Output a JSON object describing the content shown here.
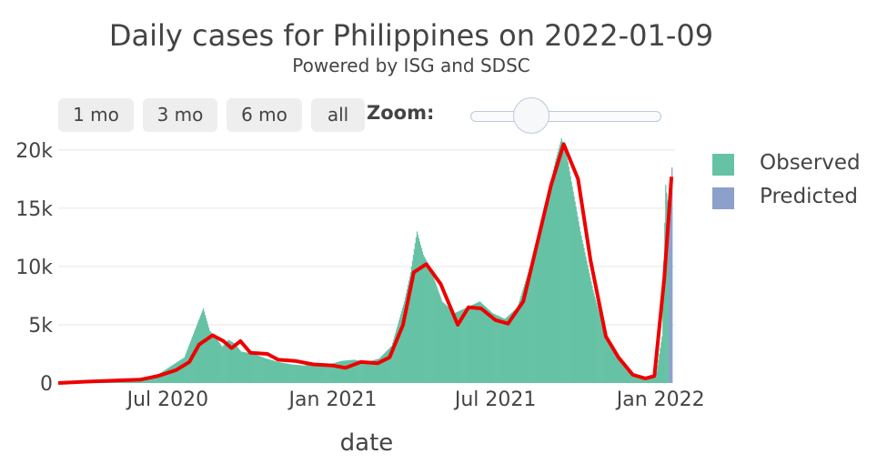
{
  "title": "Daily cases for Philippines on 2022-01-09",
  "subtitle": "Powered by ISG and SDSC",
  "range_buttons": [
    "1 mo",
    "3 mo",
    "6 mo",
    "all"
  ],
  "zoom_label": "Zoom:",
  "colors": {
    "observed": "#66c2a5",
    "predicted": "#8da0cb",
    "smoothed": "#ee0000",
    "grid": "#e6e6e6",
    "text": "#444444"
  },
  "chart_data": {
    "type": "bar",
    "xlabel": "date",
    "ylabel": "",
    "x_range": [
      "2020-03-01",
      "2022-01-17"
    ],
    "ylim": [
      0,
      21000
    ],
    "y_ticks": [
      0,
      5000,
      10000,
      15000,
      20000
    ],
    "y_tick_labels": [
      "0",
      "5k",
      "10k",
      "15k",
      "20k"
    ],
    "x_ticks": [
      "2020-07-01",
      "2021-01-01",
      "2021-07-01",
      "2022-01-01"
    ],
    "x_tick_labels": [
      "Jul 2020",
      "Jan 2021",
      "Jul 2021",
      "Jan 2022"
    ],
    "legend": {
      "position": "right",
      "entries": [
        "Observed",
        "Predicted"
      ]
    },
    "series": [
      {
        "name": "Observed",
        "kind": "bar",
        "points": [
          [
            "2020-03-01",
            0
          ],
          [
            "2020-03-15",
            80
          ],
          [
            "2020-03-29",
            200
          ],
          [
            "2020-04-12",
            280
          ],
          [
            "2020-04-26",
            250
          ],
          [
            "2020-05-10",
            300
          ],
          [
            "2020-05-24",
            350
          ],
          [
            "2020-06-07",
            550
          ],
          [
            "2020-06-21",
            800
          ],
          [
            "2020-07-05",
            1500
          ],
          [
            "2020-07-19",
            2200
          ],
          [
            "2020-08-02",
            5000
          ],
          [
            "2020-08-09",
            6400
          ],
          [
            "2020-08-16",
            4500
          ],
          [
            "2020-08-23",
            3900
          ],
          [
            "2020-08-30",
            3100
          ],
          [
            "2020-09-06",
            3700
          ],
          [
            "2020-09-13",
            3400
          ],
          [
            "2020-09-20",
            2700
          ],
          [
            "2020-10-04",
            2500
          ],
          [
            "2020-10-18",
            2100
          ],
          [
            "2020-11-01",
            1800
          ],
          [
            "2020-11-15",
            1600
          ],
          [
            "2020-11-29",
            1500
          ],
          [
            "2020-12-13",
            1700
          ],
          [
            "2020-12-27",
            1600
          ],
          [
            "2021-01-10",
            1900
          ],
          [
            "2021-01-24",
            2000
          ],
          [
            "2021-02-07",
            1800
          ],
          [
            "2021-02-21",
            2100
          ],
          [
            "2021-03-07",
            3200
          ],
          [
            "2021-03-21",
            7000
          ],
          [
            "2021-03-28",
            9500
          ],
          [
            "2021-04-04",
            13000
          ],
          [
            "2021-04-11",
            11000
          ],
          [
            "2021-04-18",
            10000
          ],
          [
            "2021-05-02",
            7000
          ],
          [
            "2021-05-16",
            6000
          ],
          [
            "2021-05-30",
            6500
          ],
          [
            "2021-06-13",
            7000
          ],
          [
            "2021-06-27",
            6000
          ],
          [
            "2021-07-11",
            5500
          ],
          [
            "2021-07-25",
            6500
          ],
          [
            "2021-08-08",
            10000
          ],
          [
            "2021-08-22",
            14000
          ],
          [
            "2021-09-05",
            19000
          ],
          [
            "2021-09-12",
            21000
          ],
          [
            "2021-09-19",
            19000
          ],
          [
            "2021-10-03",
            13000
          ],
          [
            "2021-10-17",
            8000
          ],
          [
            "2021-10-31",
            4000
          ],
          [
            "2021-11-14",
            2000
          ],
          [
            "2021-11-28",
            1000
          ],
          [
            "2021-12-12",
            400
          ],
          [
            "2021-12-26",
            500
          ],
          [
            "2022-01-02",
            4000
          ],
          [
            "2022-01-06",
            17000
          ],
          [
            "2022-01-09",
            15000
          ]
        ]
      },
      {
        "name": "Predicted",
        "kind": "bar",
        "points": [
          [
            "2022-01-10",
            14000
          ],
          [
            "2022-01-11",
            15500
          ],
          [
            "2022-01-12",
            16500
          ],
          [
            "2022-01-13",
            18500
          ]
        ]
      },
      {
        "kind": "line",
        "points": [
          [
            "2020-03-01",
            0
          ],
          [
            "2020-04-01",
            120
          ],
          [
            "2020-05-01",
            200
          ],
          [
            "2020-06-01",
            300
          ],
          [
            "2020-06-20",
            600
          ],
          [
            "2020-07-10",
            1100
          ],
          [
            "2020-07-25",
            1800
          ],
          [
            "2020-08-05",
            3300
          ],
          [
            "2020-08-20",
            4100
          ],
          [
            "2020-09-01",
            3600
          ],
          [
            "2020-09-10",
            3000
          ],
          [
            "2020-09-20",
            3600
          ],
          [
            "2020-10-01",
            2600
          ],
          [
            "2020-10-20",
            2500
          ],
          [
            "2020-11-01",
            2000
          ],
          [
            "2020-11-20",
            1900
          ],
          [
            "2020-12-10",
            1600
          ],
          [
            "2021-01-01",
            1500
          ],
          [
            "2021-01-15",
            1300
          ],
          [
            "2021-02-01",
            1800
          ],
          [
            "2021-02-20",
            1700
          ],
          [
            "2021-03-05",
            2200
          ],
          [
            "2021-03-20",
            5000
          ],
          [
            "2021-04-01",
            9500
          ],
          [
            "2021-04-15",
            10200
          ],
          [
            "2021-05-01",
            8500
          ],
          [
            "2021-05-20",
            5000
          ],
          [
            "2021-06-01",
            6500
          ],
          [
            "2021-06-15",
            6400
          ],
          [
            "2021-07-01",
            5400
          ],
          [
            "2021-07-15",
            5100
          ],
          [
            "2021-08-01",
            7000
          ],
          [
            "2021-08-15",
            11500
          ],
          [
            "2021-09-01",
            17000
          ],
          [
            "2021-09-15",
            20500
          ],
          [
            "2021-10-01",
            17500
          ],
          [
            "2021-10-15",
            10500
          ],
          [
            "2021-11-01",
            4000
          ],
          [
            "2021-11-15",
            2200
          ],
          [
            "2021-12-01",
            700
          ],
          [
            "2021-12-15",
            400
          ],
          [
            "2021-12-25",
            600
          ],
          [
            "2022-01-05",
            9000
          ],
          [
            "2022-01-13",
            17700
          ]
        ]
      }
    ]
  }
}
